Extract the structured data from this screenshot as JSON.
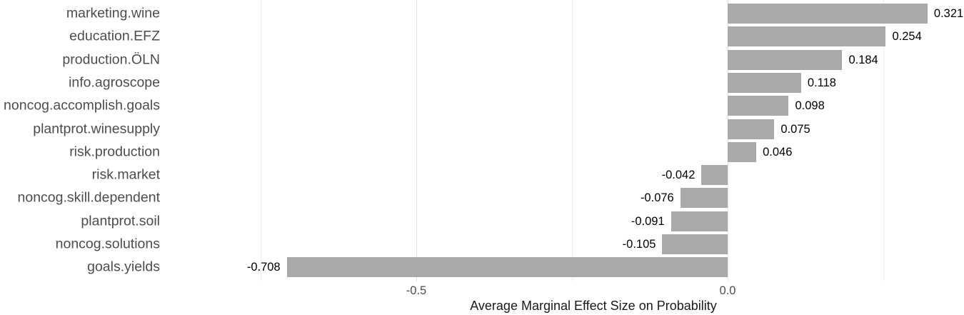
{
  "chart_data": {
    "type": "bar",
    "orientation": "horizontal",
    "title": "",
    "xlabel": "Average Marginal Effect Size on Probability",
    "ylabel": "",
    "categories": [
      "marketing.wine",
      "education.EFZ",
      "production.ÖLN",
      "info.agroscope",
      "noncog.accomplish.goals",
      "plantprot.winesupply",
      "risk.production",
      "risk.market",
      "noncog.skill.dependent",
      "plantprot.soil",
      "noncog.solutions",
      "goals.yields"
    ],
    "values": [
      0.321,
      0.254,
      0.184,
      0.118,
      0.098,
      0.075,
      0.046,
      -0.042,
      -0.076,
      -0.091,
      -0.105,
      -0.708
    ],
    "value_labels": [
      "0.321",
      "0.254",
      "0.184",
      "0.118",
      "0.098",
      "0.075",
      "0.046",
      "-0.042",
      "-0.076",
      "-0.091",
      "-0.105",
      "-0.708"
    ],
    "x_ticks": [
      {
        "value": -0.5,
        "label": "-0.5"
      },
      {
        "value": 0.0,
        "label": "0.0"
      }
    ],
    "x_major_gridlines": [
      -0.5,
      0.0
    ],
    "x_minor_gridlines": [
      -0.75,
      -0.25,
      0.25
    ],
    "xlim": [
      -0.9,
      0.38
    ],
    "grid": "vertical-only",
    "legend": "none",
    "colors": {
      "bar": "#a9a9a9",
      "grid_major": "#e3e3e3",
      "grid_minor": "#eeeeee",
      "axis_text": "#4d4d4d",
      "value_label": "#000000",
      "axis_title": "#1a1a1a",
      "background": "#ffffff"
    }
  }
}
